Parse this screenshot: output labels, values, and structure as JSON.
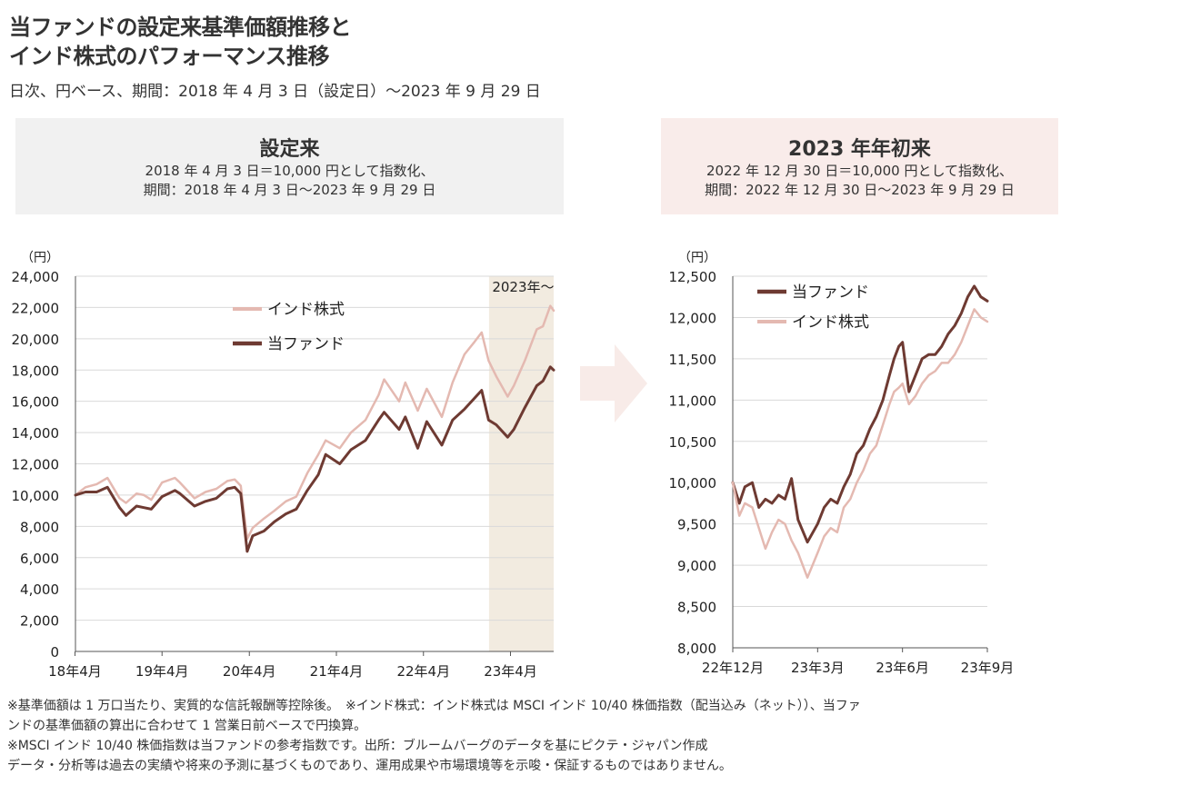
{
  "title": {
    "line1": "当ファンドの設定来基準価額推移と",
    "line2": "インド株式のパフォーマンス推移"
  },
  "subtitle": "日次、円ベース、期間：2018 年 4 月 3 日（設定日）～2023 年 9 月 29 日",
  "left_header": {
    "title": "設定来",
    "line1": "2018 年 4 月 3 日＝10,000 円として指数化、",
    "line2": "期間：2018 年 4 月 3 日～2023 年 9 月 29 日"
  },
  "right_header": {
    "title": "2023 年年初来",
    "line1": "2022 年 12 月 30 日＝10,000 円として指数化、",
    "line2": "期間：2022 年 12 月 30 日～2023 年 9 月 29 日"
  },
  "colors": {
    "fund": "#6e3a32",
    "india": "#e4b9b1",
    "shade": "#f2ebe0",
    "arrow": "#f8ebe8",
    "grid": "#d9d9d9"
  },
  "chart_data": [
    {
      "type": "line",
      "unit_label": "（円）",
      "ylim": [
        0,
        24000
      ],
      "yticks": [
        0,
        2000,
        4000,
        6000,
        8000,
        10000,
        12000,
        14000,
        16000,
        18000,
        20000,
        22000,
        24000
      ],
      "ytick_labels": [
        "0",
        "2,000",
        "4,000",
        "6,000",
        "8,000",
        "10,000",
        "12,000",
        "14,000",
        "16,000",
        "18,000",
        "20,000",
        "22,000",
        "24,000"
      ],
      "xlim": [
        "2018-04-03",
        "2023-09-29"
      ],
      "xticks": [
        "2018-04",
        "2019-04",
        "2020-04",
        "2021-04",
        "2022-04",
        "2023-04"
      ],
      "xtick_labels": [
        "18年4月",
        "19年4月",
        "20年4月",
        "21年4月",
        "22年4月",
        "23年4月"
      ],
      "shaded_region": {
        "from": "2023-01-01",
        "to": "2023-09-29",
        "label": "2023年～"
      },
      "grid": true,
      "legend": "upper-center",
      "series": [
        {
          "name": "インド株式",
          "color": "#e4b9b1",
          "points": [
            [
              "2018-04-03",
              10000
            ],
            [
              "2018-05-15",
              10500
            ],
            [
              "2018-07-01",
              10700
            ],
            [
              "2018-08-15",
              11100
            ],
            [
              "2018-10-05",
              9800
            ],
            [
              "2018-11-01",
              9500
            ],
            [
              "2018-12-15",
              10100
            ],
            [
              "2019-01-15",
              10000
            ],
            [
              "2019-02-15",
              9700
            ],
            [
              "2019-04-01",
              10800
            ],
            [
              "2019-05-25",
              11100
            ],
            [
              "2019-06-15",
              10800
            ],
            [
              "2019-08-15",
              9800
            ],
            [
              "2019-09-30",
              10200
            ],
            [
              "2019-11-15",
              10400
            ],
            [
              "2019-12-31",
              10900
            ],
            [
              "2020-01-31",
              11000
            ],
            [
              "2020-02-25",
              10600
            ],
            [
              "2020-03-23",
              7200
            ],
            [
              "2020-04-15",
              7900
            ],
            [
              "2020-06-01",
              8500
            ],
            [
              "2020-07-15",
              9000
            ],
            [
              "2020-09-01",
              9600
            ],
            [
              "2020-10-15",
              9900
            ],
            [
              "2020-11-30",
              11400
            ],
            [
              "2021-01-15",
              12600
            ],
            [
              "2021-02-15",
              13500
            ],
            [
              "2021-04-15",
              13000
            ],
            [
              "2021-06-01",
              14000
            ],
            [
              "2021-08-01",
              14800
            ],
            [
              "2021-09-25",
              16400
            ],
            [
              "2021-10-18",
              17400
            ],
            [
              "2021-12-20",
              16000
            ],
            [
              "2022-01-15",
              17200
            ],
            [
              "2022-03-08",
              15400
            ],
            [
              "2022-04-15",
              16800
            ],
            [
              "2022-06-17",
              15000
            ],
            [
              "2022-08-01",
              17200
            ],
            [
              "2022-09-20",
              19000
            ],
            [
              "2022-11-01",
              19800
            ],
            [
              "2022-12-01",
              20400
            ],
            [
              "2022-12-30",
              18600
            ],
            [
              "2023-01-31",
              17600
            ],
            [
              "2023-03-20",
              16300
            ],
            [
              "2023-04-15",
              17000
            ],
            [
              "2023-05-31",
              18600
            ],
            [
              "2023-07-20",
              20600
            ],
            [
              "2023-08-15",
              20800
            ],
            [
              "2023-09-15",
              22100
            ],
            [
              "2023-09-29",
              21800
            ]
          ]
        },
        {
          "name": "当ファンド",
          "color": "#6e3a32",
          "points": [
            [
              "2018-04-03",
              10000
            ],
            [
              "2018-05-15",
              10200
            ],
            [
              "2018-07-01",
              10200
            ],
            [
              "2018-08-15",
              10500
            ],
            [
              "2018-10-05",
              9200
            ],
            [
              "2018-11-01",
              8700
            ],
            [
              "2018-12-15",
              9300
            ],
            [
              "2019-01-15",
              9200
            ],
            [
              "2019-02-15",
              9100
            ],
            [
              "2019-04-01",
              9900
            ],
            [
              "2019-05-25",
              10300
            ],
            [
              "2019-06-15",
              10100
            ],
            [
              "2019-08-15",
              9300
            ],
            [
              "2019-09-30",
              9600
            ],
            [
              "2019-11-15",
              9800
            ],
            [
              "2019-12-31",
              10400
            ],
            [
              "2020-01-31",
              10500
            ],
            [
              "2020-02-25",
              10100
            ],
            [
              "2020-03-23",
              6400
            ],
            [
              "2020-04-15",
              7400
            ],
            [
              "2020-06-01",
              7700
            ],
            [
              "2020-07-15",
              8300
            ],
            [
              "2020-09-01",
              8800
            ],
            [
              "2020-10-15",
              9100
            ],
            [
              "2020-11-30",
              10300
            ],
            [
              "2021-01-15",
              11300
            ],
            [
              "2021-02-15",
              12600
            ],
            [
              "2021-04-15",
              12000
            ],
            [
              "2021-06-01",
              12900
            ],
            [
              "2021-08-01",
              13500
            ],
            [
              "2021-09-25",
              14800
            ],
            [
              "2021-10-18",
              15300
            ],
            [
              "2021-12-20",
              14200
            ],
            [
              "2022-01-15",
              15000
            ],
            [
              "2022-03-08",
              13000
            ],
            [
              "2022-04-15",
              14700
            ],
            [
              "2022-06-17",
              13200
            ],
            [
              "2022-08-01",
              14800
            ],
            [
              "2022-09-20",
              15500
            ],
            [
              "2022-11-01",
              16200
            ],
            [
              "2022-12-01",
              16700
            ],
            [
              "2022-12-30",
              14800
            ],
            [
              "2023-01-31",
              14500
            ],
            [
              "2023-03-20",
              13700
            ],
            [
              "2023-04-15",
              14200
            ],
            [
              "2023-05-31",
              15600
            ],
            [
              "2023-07-20",
              17000
            ],
            [
              "2023-08-15",
              17300
            ],
            [
              "2023-09-15",
              18200
            ],
            [
              "2023-09-29",
              18000
            ]
          ]
        }
      ]
    },
    {
      "type": "line",
      "unit_label": "（円）",
      "ylim": [
        8000,
        12500
      ],
      "yticks": [
        8000,
        8500,
        9000,
        9500,
        10000,
        10500,
        11000,
        11500,
        12000,
        12500
      ],
      "ytick_labels": [
        "8,000",
        "8,500",
        "9,000",
        "9,500",
        "10,000",
        "10,500",
        "11,000",
        "11,500",
        "12,000",
        "12,500"
      ],
      "xlim": [
        "2022-12-30",
        "2023-09-29"
      ],
      "xticks": [
        "2022-12-30",
        "2023-03-31",
        "2023-06-30",
        "2023-09-29"
      ],
      "xtick_labels": [
        "22年12月",
        "23年3月",
        "23年6月",
        "23年9月"
      ],
      "grid": true,
      "legend": "upper-left",
      "series": [
        {
          "name": "当ファンド",
          "color": "#6e3a32",
          "points": [
            [
              "2022-12-30",
              10000
            ],
            [
              "2023-01-06",
              9750
            ],
            [
              "2023-01-12",
              9950
            ],
            [
              "2023-01-20",
              10000
            ],
            [
              "2023-01-27",
              9700
            ],
            [
              "2023-02-03",
              9800
            ],
            [
              "2023-02-10",
              9750
            ],
            [
              "2023-02-17",
              9850
            ],
            [
              "2023-02-24",
              9800
            ],
            [
              "2023-03-03",
              10050
            ],
            [
              "2023-03-10",
              9550
            ],
            [
              "2023-03-20",
              9280
            ],
            [
              "2023-03-31",
              9500
            ],
            [
              "2023-04-07",
              9700
            ],
            [
              "2023-04-14",
              9800
            ],
            [
              "2023-04-21",
              9750
            ],
            [
              "2023-04-28",
              9950
            ],
            [
              "2023-05-05",
              10100
            ],
            [
              "2023-05-12",
              10350
            ],
            [
              "2023-05-19",
              10450
            ],
            [
              "2023-05-26",
              10650
            ],
            [
              "2023-06-02",
              10800
            ],
            [
              "2023-06-09",
              11000
            ],
            [
              "2023-06-16",
              11300
            ],
            [
              "2023-06-21",
              11500
            ],
            [
              "2023-06-26",
              11650
            ],
            [
              "2023-06-30",
              11700
            ],
            [
              "2023-07-07",
              11100
            ],
            [
              "2023-07-14",
              11300
            ],
            [
              "2023-07-21",
              11500
            ],
            [
              "2023-07-28",
              11550
            ],
            [
              "2023-08-04",
              11550
            ],
            [
              "2023-08-11",
              11650
            ],
            [
              "2023-08-18",
              11800
            ],
            [
              "2023-08-25",
              11900
            ],
            [
              "2023-09-01",
              12050
            ],
            [
              "2023-09-08",
              12250
            ],
            [
              "2023-09-15",
              12380
            ],
            [
              "2023-09-22",
              12250
            ],
            [
              "2023-09-29",
              12200
            ]
          ]
        },
        {
          "name": "インド株式",
          "color": "#e4b9b1",
          "points": [
            [
              "2022-12-30",
              10000
            ],
            [
              "2023-01-06",
              9600
            ],
            [
              "2023-01-12",
              9750
            ],
            [
              "2023-01-20",
              9700
            ],
            [
              "2023-01-27",
              9450
            ],
            [
              "2023-02-03",
              9200
            ],
            [
              "2023-02-10",
              9400
            ],
            [
              "2023-02-17",
              9550
            ],
            [
              "2023-02-24",
              9500
            ],
            [
              "2023-03-03",
              9300
            ],
            [
              "2023-03-10",
              9150
            ],
            [
              "2023-03-20",
              8850
            ],
            [
              "2023-03-31",
              9150
            ],
            [
              "2023-04-07",
              9350
            ],
            [
              "2023-04-14",
              9450
            ],
            [
              "2023-04-21",
              9400
            ],
            [
              "2023-04-28",
              9700
            ],
            [
              "2023-05-05",
              9800
            ],
            [
              "2023-05-12",
              10000
            ],
            [
              "2023-05-19",
              10150
            ],
            [
              "2023-05-26",
              10350
            ],
            [
              "2023-06-02",
              10450
            ],
            [
              "2023-06-09",
              10700
            ],
            [
              "2023-06-16",
              10950
            ],
            [
              "2023-06-21",
              11100
            ],
            [
              "2023-06-26",
              11150
            ],
            [
              "2023-06-30",
              11200
            ],
            [
              "2023-07-07",
              10950
            ],
            [
              "2023-07-14",
              11050
            ],
            [
              "2023-07-21",
              11200
            ],
            [
              "2023-07-28",
              11300
            ],
            [
              "2023-08-04",
              11350
            ],
            [
              "2023-08-11",
              11450
            ],
            [
              "2023-08-18",
              11450
            ],
            [
              "2023-08-25",
              11550
            ],
            [
              "2023-09-01",
              11700
            ],
            [
              "2023-09-08",
              11900
            ],
            [
              "2023-09-15",
              12100
            ],
            [
              "2023-09-22",
              12000
            ],
            [
              "2023-09-29",
              11950
            ]
          ]
        }
      ]
    }
  ],
  "footnotes": [
    "※基準価額は 1 万口当たり、実質的な信託報酬等控除後。　※インド株式：インド株式は MSCI インド 10/40 株価指数（配当込み（ネット））、当ファ",
    "ンドの基準価額の算出に合わせて 1 営業日前ベースで円換算。",
    "※MSCI インド 10/40 株価指数は当ファンドの参考指数です。出所：ブルームバーグのデータを基にピクテ・ジャパン作成",
    "データ・分析等は過去の実績や将来の予測に基づくものであり、運用成果や市場環境等を示唆・保証するものではありません。"
  ]
}
